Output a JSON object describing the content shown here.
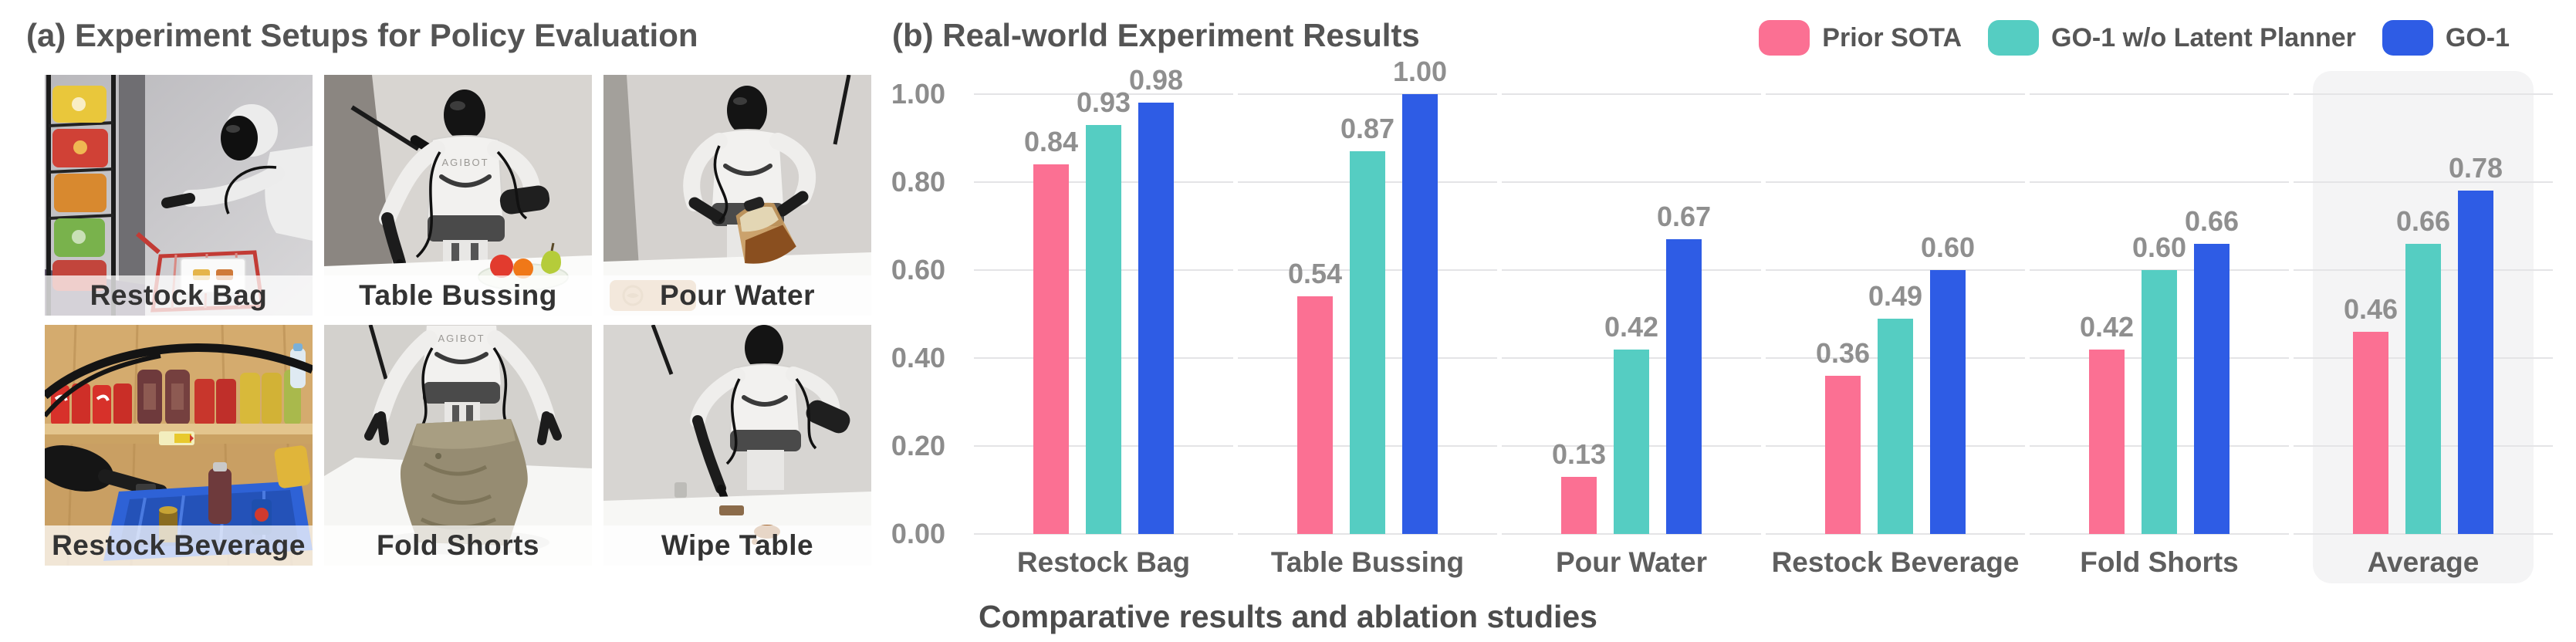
{
  "panel_a": {
    "title": "(a) Experiment Setups for Policy Evaluation",
    "robot_brand": "AGIBOT",
    "photos": [
      {
        "label": "Restock Bag"
      },
      {
        "label": "Table Bussing"
      },
      {
        "label": "Pour Water"
      },
      {
        "label": "Restock Beverage"
      },
      {
        "label": "Fold Shorts"
      },
      {
        "label": "Wipe Table"
      }
    ]
  },
  "panel_b": {
    "title": "(b) Real-world Experiment Results",
    "caption": "Comparative results and ablation studies"
  },
  "chart_data": {
    "type": "bar",
    "title": "(b) Real-world Experiment Results",
    "categories": [
      "Restock Bag",
      "Table Bussing",
      "Pour Water",
      "Restock Beverage",
      "Fold Shorts",
      "Average"
    ],
    "series": [
      {
        "name": "Prior SOTA",
        "color": "#FB7093",
        "values": [
          0.84,
          0.54,
          0.13,
          0.36,
          0.42,
          0.46
        ]
      },
      {
        "name": "GO-1 w/o Latent Planner",
        "color": "#55CDC2",
        "values": [
          0.93,
          0.87,
          0.42,
          0.49,
          0.6,
          0.66
        ]
      },
      {
        "name": "GO-1",
        "color": "#2E5CE5",
        "values": [
          0.98,
          1.0,
          0.67,
          0.6,
          0.66,
          0.78
        ]
      }
    ],
    "ylabel": "",
    "xlabel": "",
    "ylim": [
      0,
      1.0
    ],
    "yticks": [
      "0.00",
      "0.20",
      "0.40",
      "0.60",
      "0.80",
      "1.00"
    ],
    "grid": true,
    "legend_position": "top-right",
    "highlight_category": "Average",
    "value_label_format": "0.00",
    "colors": {
      "gridline": "#e4e4e6",
      "axis_tick_text": "#8c8c8c",
      "value_label_text": "#8f8f8f",
      "category_text": "#5e5e5e",
      "highlight_background": "#f4f4f5"
    }
  }
}
